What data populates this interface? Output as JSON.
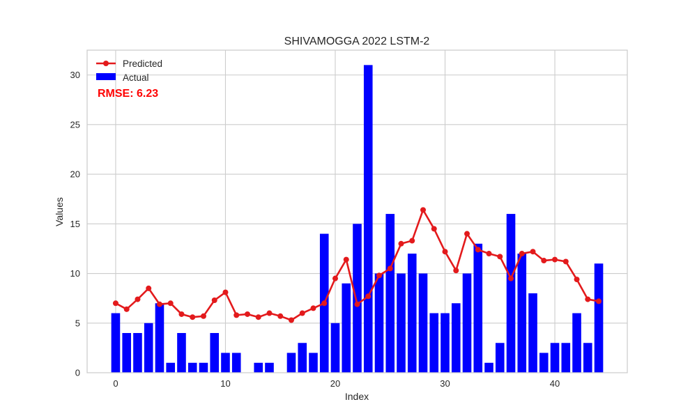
{
  "chart_data": {
    "type": "bar",
    "title": "SHIVAMOGGA 2022 LSTM-2",
    "xlabel": "Index",
    "ylabel": "Values",
    "xlim": [
      -2.6,
      46.6
    ],
    "ylim": [
      0,
      32.5
    ],
    "x_ticks": [
      0,
      10,
      20,
      30,
      40
    ],
    "y_ticks": [
      0,
      5,
      10,
      15,
      20,
      25,
      30
    ],
    "grid": true,
    "legend_position": "top-left",
    "annotation": "RMSE: 6.23",
    "x": [
      0,
      1,
      2,
      3,
      4,
      5,
      6,
      7,
      8,
      9,
      10,
      11,
      12,
      13,
      14,
      15,
      16,
      17,
      18,
      19,
      20,
      21,
      22,
      23,
      24,
      25,
      26,
      27,
      28,
      29,
      30,
      31,
      32,
      33,
      34,
      35,
      36,
      37,
      38,
      39,
      40,
      41,
      42,
      43,
      44
    ],
    "series": [
      {
        "name": "Actual",
        "type": "bar",
        "color": "#0000ff",
        "values": [
          6,
          4,
          4,
          5,
          7,
          1,
          4,
          1,
          1,
          4,
          2,
          2,
          0,
          1,
          1,
          0,
          2,
          3,
          2,
          14,
          5,
          9,
          15,
          31,
          10,
          16,
          10,
          12,
          10,
          6,
          6,
          7,
          10,
          13,
          1,
          3,
          16,
          12,
          8,
          2,
          3,
          3,
          6,
          3,
          11
        ]
      },
      {
        "name": "Predicted",
        "type": "line",
        "color": "#e31a1c",
        "values": [
          7.0,
          6.4,
          7.4,
          8.5,
          6.9,
          7.0,
          5.9,
          5.6,
          5.7,
          7.3,
          8.1,
          5.8,
          5.9,
          5.6,
          6.0,
          5.7,
          5.3,
          6.0,
          6.5,
          7.0,
          9.5,
          11.4,
          6.9,
          7.7,
          9.8,
          10.5,
          13.0,
          13.3,
          16.4,
          14.5,
          12.2,
          10.3,
          14.0,
          12.4,
          12.0,
          11.7,
          9.5,
          12.0,
          12.2,
          11.3,
          11.4,
          11.2,
          9.4,
          7.4,
          7.2
        ]
      }
    ]
  }
}
